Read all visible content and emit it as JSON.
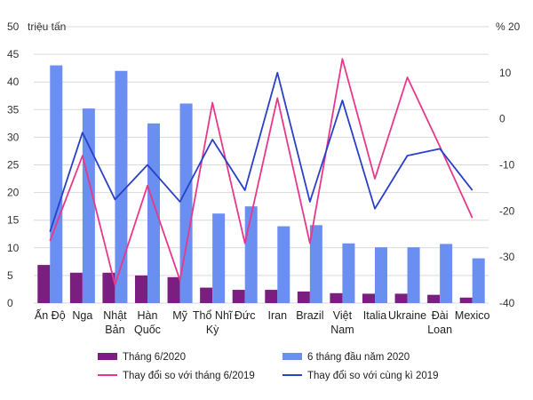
{
  "chart_data": {
    "type": "bar",
    "categories": [
      [
        "Ấn Độ"
      ],
      [
        "Nga"
      ],
      [
        "Nhật",
        "Bản"
      ],
      [
        "Hàn",
        "Quốc"
      ],
      [
        "Mỹ"
      ],
      [
        "Thổ Nhĩ",
        "Kỳ"
      ],
      [
        "Đức"
      ],
      [
        "Iran"
      ],
      [
        "Brazil"
      ],
      [
        "Việt",
        "Nam"
      ],
      [
        "Italia"
      ],
      [
        "Ukraine"
      ],
      [
        "Đài",
        "Loan"
      ],
      [
        "Mexico"
      ]
    ],
    "y_left": {
      "unit_label": "triệu tấn",
      "min": 0,
      "max": 50,
      "ticks": [
        0,
        5,
        10,
        15,
        20,
        25,
        30,
        35,
        40,
        45,
        50
      ]
    },
    "y_right": {
      "unit_label": "%",
      "min": -40,
      "max": 20,
      "ticks": [
        -40,
        -30,
        -20,
        -10,
        0,
        10,
        20
      ]
    },
    "grid": true,
    "legend_position": "bottom",
    "series": [
      {
        "name": "Tháng 6/2020",
        "type": "bar",
        "axis": "left",
        "color": "#7a1f7f",
        "values": [
          6.9,
          5.5,
          5.5,
          5.0,
          4.7,
          2.8,
          2.4,
          2.4,
          2.1,
          1.8,
          1.7,
          1.7,
          1.5,
          1.0
        ]
      },
      {
        "name": "6 tháng đầu năm 2020",
        "type": "bar",
        "axis": "left",
        "color": "#6a8ff0",
        "values": [
          43.0,
          35.2,
          42.0,
          32.5,
          36.1,
          16.2,
          17.5,
          13.9,
          14.1,
          10.8,
          10.1,
          10.1,
          10.7,
          8.1
        ]
      },
      {
        "name": "Thay đổi so với tháng 6/2019",
        "type": "line",
        "axis": "right",
        "color": "#e8388a",
        "values": [
          -26.5,
          -8,
          -36,
          -14.5,
          -35,
          3.5,
          -27,
          4.5,
          -27,
          13,
          -13,
          9,
          -6,
          -21.5
        ]
      },
      {
        "name": "Thay đổi so với cùng kì 2019",
        "type": "line",
        "axis": "right",
        "color": "#2a40c8",
        "values": [
          -24.5,
          -3,
          -17.5,
          -10,
          -18,
          -4.5,
          -15.5,
          10,
          -18,
          4,
          -19.5,
          -8,
          -6.5,
          -15.5
        ]
      }
    ]
  }
}
